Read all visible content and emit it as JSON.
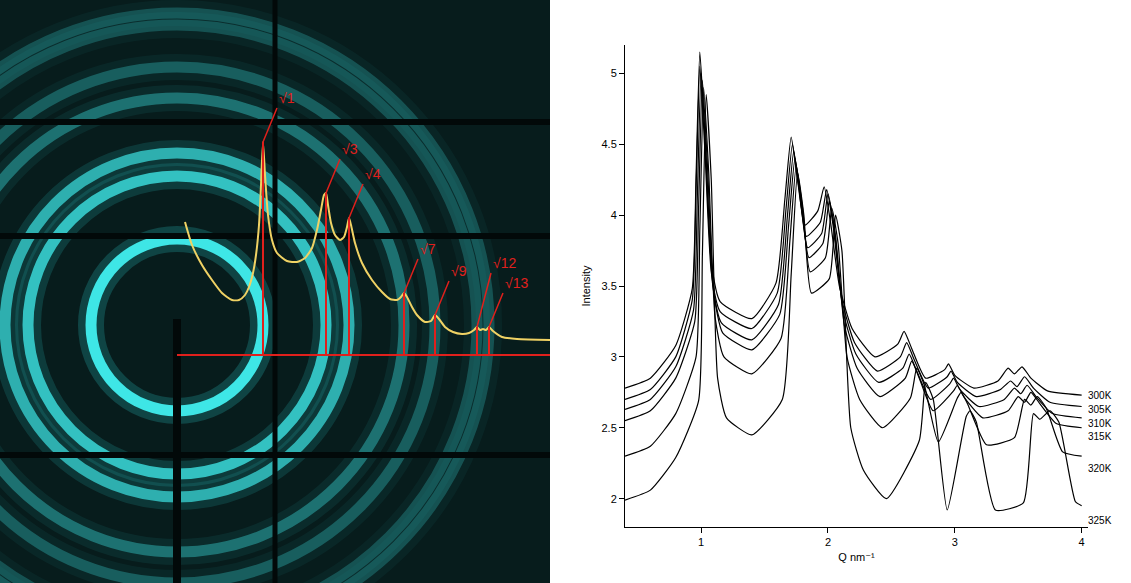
{
  "chart_data": [
    {
      "type": "line",
      "color": "#f0d264",
      "tick_labels": false,
      "xlim": [
        -177,
        373
      ],
      "ylim": [
        -228,
        355
      ],
      "beam_center": [
        0,
        30
      ],
      "x": [
        8,
        15,
        25,
        35,
        45,
        55,
        62,
        68,
        72,
        76,
        79,
        82,
        84,
        86,
        88,
        91,
        95,
        100,
        110,
        120,
        128,
        135,
        140,
        144,
        147,
        149,
        151,
        154,
        158,
        163,
        167,
        170,
        172,
        174,
        178,
        185,
        195,
        205,
        213,
        220,
        224,
        227,
        230,
        235,
        240,
        248,
        254,
        258,
        262,
        268,
        276,
        285,
        292,
        297,
        300,
        303,
        306,
        309,
        312,
        316,
        325,
        340,
        373
      ],
      "values": [
        133,
        110,
        90,
        75,
        62,
        55,
        55,
        60,
        68,
        82,
        100,
        130,
        170,
        213,
        180,
        140,
        115,
        102,
        94,
        93,
        97,
        107,
        125,
        145,
        160,
        162,
        150,
        132,
        120,
        115,
        118,
        128,
        137,
        130,
        112,
        92,
        75,
        63,
        56,
        55,
        58,
        62,
        58,
        48,
        40,
        33,
        34,
        40,
        36,
        28,
        23,
        21,
        22,
        25,
        28,
        25,
        26,
        25,
        28,
        24,
        18,
        16,
        15
      ],
      "annotations": [
        {
          "text": "√1",
          "x": 86,
          "y": 213,
          "color": "#e0201c"
        },
        {
          "text": "√3",
          "x": 149,
          "y": 162,
          "color": "#e0201c"
        },
        {
          "text": "√4",
          "x": 172,
          "y": 137,
          "color": "#e0201c"
        },
        {
          "text": "√7",
          "x": 227,
          "y": 62,
          "color": "#e0201c"
        },
        {
          "text": "√9",
          "x": 258,
          "y": 40,
          "color": "#e0201c"
        },
        {
          "text": "√12",
          "x": 300,
          "y": 28,
          "color": "#e0201c"
        },
        {
          "text": "√13",
          "x": 312,
          "y": 28,
          "color": "#e0201c"
        }
      ]
    },
    {
      "type": "line",
      "x_label": "Q nm⁻¹",
      "y_label": "Intensity",
      "xlim": [
        0.4,
        4.05
      ],
      "ylim": [
        1.8,
        5.2
      ],
      "xticks": [
        1,
        2,
        3,
        4
      ],
      "yticks": [
        2,
        2.5,
        3,
        3.5,
        4,
        4.5,
        5
      ],
      "series": [
        {
          "name": "300K",
          "color": "#000000",
          "x": [
            0.4,
            0.6,
            0.8,
            0.93,
            0.96,
            0.99,
            1.03,
            1.08,
            1.15,
            1.4,
            1.59,
            1.66,
            1.71,
            1.76,
            1.82,
            1.92,
            1.97,
            2.02,
            2.09,
            2.19,
            2.37,
            2.55,
            2.6,
            2.66,
            2.77,
            2.92,
            2.95,
            3.0,
            3.15,
            3.34,
            3.42,
            3.47,
            3.53,
            3.6,
            3.73,
            4.0
          ],
          "values": [
            2.78,
            2.85,
            3.08,
            3.48,
            4.27,
            5.15,
            4.55,
            3.67,
            3.39,
            3.27,
            3.52,
            4.11,
            4.55,
            4.25,
            3.93,
            4.03,
            4.2,
            3.95,
            3.5,
            3.2,
            3.0,
            3.09,
            3.18,
            3.06,
            2.85,
            2.91,
            2.95,
            2.87,
            2.78,
            2.83,
            2.92,
            2.88,
            2.93,
            2.85,
            2.76,
            2.73
          ]
        },
        {
          "name": "305K",
          "color": "#000000",
          "x": [
            0.4,
            0.6,
            0.8,
            0.93,
            0.96,
            0.99,
            1.03,
            1.08,
            1.15,
            1.4,
            1.6,
            1.67,
            1.72,
            1.77,
            1.83,
            1.94,
            1.99,
            2.04,
            2.11,
            2.21,
            2.39,
            2.57,
            2.62,
            2.68,
            2.79,
            2.94,
            2.97,
            3.02,
            3.17,
            3.36,
            3.44,
            3.49,
            3.55,
            3.62,
            3.75,
            4.0
          ],
          "values": [
            2.7,
            2.77,
            3.0,
            3.4,
            4.18,
            5.05,
            4.45,
            3.6,
            3.32,
            3.2,
            3.45,
            4.05,
            4.5,
            4.2,
            3.85,
            3.95,
            4.18,
            3.93,
            3.4,
            3.1,
            2.9,
            3.0,
            3.1,
            2.98,
            2.78,
            2.86,
            2.9,
            2.82,
            2.72,
            2.77,
            2.83,
            2.79,
            2.86,
            2.78,
            2.68,
            2.65
          ]
        },
        {
          "name": "310K",
          "color": "#000000",
          "x": [
            0.4,
            0.6,
            0.8,
            0.94,
            0.97,
            1.0,
            1.04,
            1.09,
            1.16,
            1.4,
            1.61,
            1.68,
            1.73,
            1.78,
            1.84,
            1.95,
            2.0,
            2.05,
            2.12,
            2.22,
            2.4,
            2.59,
            2.64,
            2.7,
            2.81,
            2.96,
            2.99,
            3.04,
            3.19,
            3.39,
            3.47,
            3.52,
            3.57,
            3.64,
            3.77,
            4.0
          ],
          "values": [
            2.63,
            2.7,
            2.93,
            3.33,
            4.12,
            5.0,
            4.4,
            3.52,
            3.24,
            3.12,
            3.37,
            3.99,
            4.45,
            4.15,
            3.77,
            3.87,
            4.15,
            3.9,
            3.32,
            3.02,
            2.82,
            2.92,
            3.02,
            2.9,
            2.7,
            2.81,
            2.85,
            2.77,
            2.65,
            2.7,
            2.78,
            2.74,
            2.8,
            2.72,
            2.6,
            2.57
          ]
        },
        {
          "name": "315K",
          "color": "#000000",
          "x": [
            0.4,
            0.6,
            0.8,
            0.95,
            0.98,
            1.01,
            1.05,
            1.1,
            1.17,
            1.4,
            1.62,
            1.69,
            1.74,
            1.79,
            1.85,
            1.96,
            2.01,
            2.06,
            2.13,
            2.23,
            2.41,
            2.61,
            2.66,
            2.72,
            2.83,
            2.99,
            3.02,
            3.07,
            3.22,
            3.42,
            3.5,
            3.55,
            3.6,
            3.67,
            3.8,
            4.0
          ],
          "values": [
            2.55,
            2.62,
            2.85,
            3.25,
            4.05,
            4.95,
            4.35,
            3.45,
            3.17,
            3.05,
            3.3,
            3.93,
            4.4,
            4.1,
            3.7,
            3.8,
            4.1,
            3.85,
            3.22,
            2.92,
            2.72,
            2.85,
            2.97,
            2.85,
            2.62,
            2.76,
            2.8,
            2.72,
            2.57,
            2.62,
            2.72,
            2.68,
            2.75,
            2.67,
            2.53,
            2.5
          ]
        },
        {
          "name": "320K",
          "color": "#000000",
          "x": [
            0.4,
            0.6,
            0.8,
            0.96,
            0.99,
            1.02,
            1.06,
            1.11,
            1.18,
            1.4,
            1.63,
            1.7,
            1.75,
            1.8,
            1.86,
            1.98,
            2.03,
            2.08,
            2.15,
            2.25,
            2.43,
            2.65,
            2.7,
            2.76,
            2.87,
            3.02,
            3.05,
            3.1,
            3.25,
            3.47,
            3.55,
            3.6,
            3.65,
            3.72,
            3.85,
            4.0
          ],
          "values": [
            2.3,
            2.37,
            2.6,
            3.0,
            3.9,
            4.9,
            4.3,
            3.28,
            3.0,
            2.88,
            3.13,
            3.82,
            4.35,
            4.05,
            3.6,
            3.7,
            4.05,
            3.8,
            3.0,
            2.7,
            2.5,
            2.71,
            2.92,
            2.8,
            2.4,
            2.71,
            2.75,
            2.67,
            2.38,
            2.43,
            2.7,
            2.66,
            2.72,
            2.64,
            2.33,
            2.3
          ]
        },
        {
          "name": "325K",
          "color": "#000000",
          "x": [
            0.4,
            0.6,
            0.8,
            0.98,
            1.01,
            1.04,
            1.08,
            1.13,
            1.2,
            1.4,
            1.64,
            1.71,
            1.76,
            1.81,
            1.87,
            2.01,
            2.06,
            2.11,
            2.18,
            2.28,
            2.46,
            2.72,
            2.77,
            2.83,
            2.94,
            3.09,
            3.12,
            3.17,
            3.32,
            3.54,
            3.62,
            3.67,
            3.75,
            3.82,
            3.95,
            4.0
          ],
          "values": [
            1.99,
            2.06,
            2.29,
            2.69,
            3.72,
            4.85,
            4.25,
            2.85,
            2.57,
            2.45,
            2.7,
            3.58,
            4.3,
            4.0,
            3.45,
            3.55,
            4.0,
            3.75,
            2.5,
            2.2,
            2.0,
            2.41,
            2.82,
            2.7,
            1.92,
            2.58,
            2.62,
            2.54,
            1.92,
            1.97,
            2.6,
            2.56,
            2.62,
            2.54,
            1.98,
            1.95
          ]
        }
      ]
    }
  ]
}
